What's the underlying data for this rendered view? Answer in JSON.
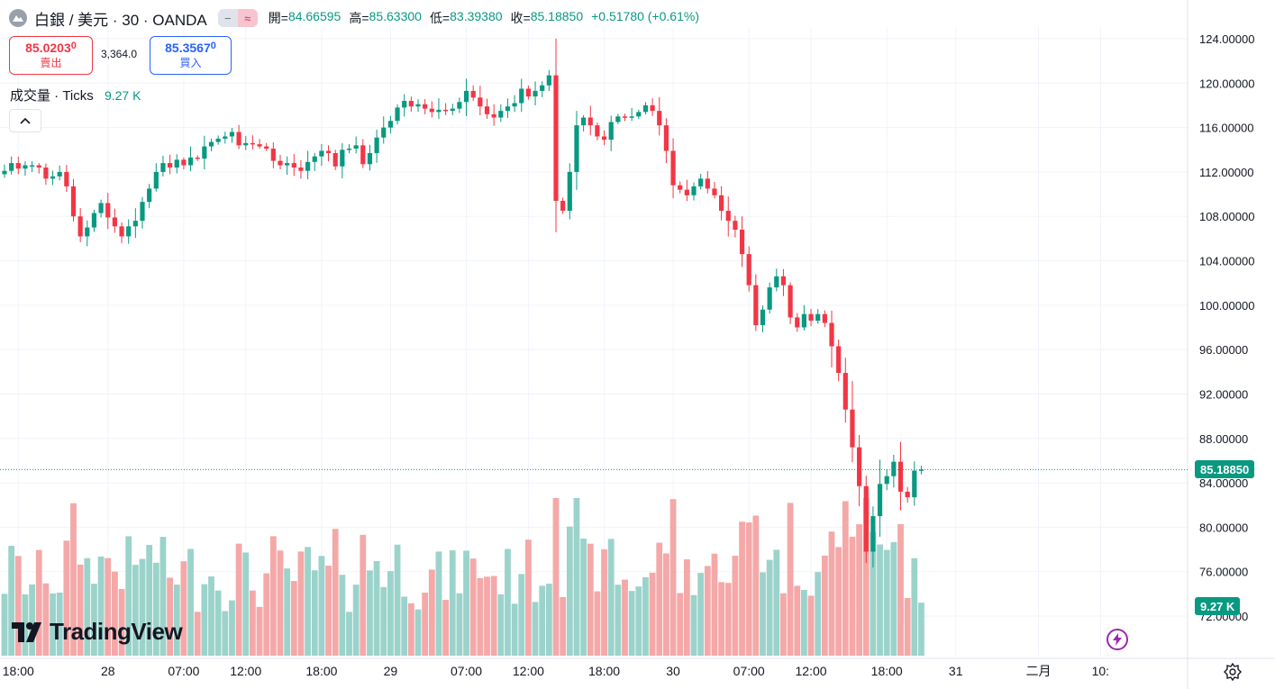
{
  "header": {
    "title": "白銀 / 美元 · 30 · OANDA",
    "pill_left": "−",
    "pill_right": "≈",
    "open_label": "開=",
    "open_value": "84.66595",
    "high_label": "高=",
    "high_value": "85.63300",
    "low_label": "低=",
    "low_value": "83.39380",
    "close_label": "收=",
    "close_value": "85.18850",
    "change": "+0.51780 (+0.61%)"
  },
  "trade": {
    "sell_price": "85.0203",
    "sell_price_small": "0",
    "sell_label": "賣出",
    "spread": "3,364.0",
    "buy_price": "85.3567",
    "buy_price_small": "0",
    "buy_label": "買入"
  },
  "volume_legend": {
    "label": "成交量 · Ticks",
    "value": "9.27 K"
  },
  "colors": {
    "up": "#089981",
    "down": "#f23645",
    "vol_up": "#9bd3cb",
    "vol_down": "#f4a8a8",
    "grid": "#f0f3fa",
    "axis_text": "#131722"
  },
  "tags": {
    "last_price": "85.18850",
    "last_volume": "9.27 K"
  },
  "branding": {
    "logo_text": "TradingView"
  },
  "chart_data": {
    "type": "candlestick",
    "title": "白銀 / 美元 · 30 · OANDA",
    "ylim": [
      70.0,
      125.0
    ],
    "y_ticks": [
      "124.00000",
      "120.00000",
      "116.00000",
      "112.00000",
      "108.00000",
      "104.00000",
      "100.00000",
      "96.00000",
      "92.00000",
      "88.00000",
      "84.00000",
      "80.00000",
      "76.00000",
      "72.00000"
    ],
    "x_ticks": [
      "18:00",
      "28",
      "07:00",
      "12:00",
      "18:00",
      "29",
      "07:00",
      "12:00",
      "18:00",
      "30",
      "07:00",
      "12:00",
      "18:00",
      "31",
      "二月",
      "10:"
    ],
    "x_tick_bar_index": [
      2,
      15,
      26,
      35,
      46,
      56,
      67,
      76,
      87,
      97,
      108,
      117,
      128,
      138,
      150,
      159
    ],
    "last_price": 85.1885,
    "closes": [
      112.1,
      112.8,
      112.3,
      112.6,
      112.6,
      112.4,
      111.4,
      111.6,
      112.0,
      110.7,
      108.0,
      106.2,
      107.0,
      108.3,
      109.2,
      107.9,
      107.1,
      106.2,
      107.1,
      107.6,
      109.3,
      110.5,
      112.0,
      112.8,
      112.4,
      113.1,
      112.6,
      113.3,
      113.2,
      114.3,
      114.7,
      115.0,
      115.2,
      115.6,
      114.4,
      114.6,
      114.5,
      114.3,
      114.1,
      113.0,
      112.6,
      112.8,
      112.4,
      112.1,
      112.9,
      113.4,
      113.9,
      113.7,
      112.5,
      114.0,
      114.1,
      114.4,
      112.7,
      113.7,
      115.1,
      116.0,
      116.6,
      117.8,
      118.4,
      117.9,
      118.1,
      117.7,
      117.4,
      117.6,
      117.5,
      117.7,
      118.3,
      119.3,
      118.7,
      117.9,
      117.2,
      116.9,
      117.5,
      117.9,
      118.2,
      119.5,
      118.8,
      119.3,
      119.8,
      120.7,
      109.4,
      108.5,
      112.0,
      116.2,
      116.9,
      116.2,
      115.2,
      114.9,
      116.5,
      117.0,
      116.9,
      117.0,
      117.4,
      118.0,
      117.5,
      116.2,
      113.9,
      110.8,
      110.4,
      109.9,
      110.7,
      111.4,
      110.5,
      109.9,
      108.5,
      107.6,
      106.8,
      104.6,
      101.8,
      98.2,
      99.6,
      101.6,
      102.6,
      101.8,
      98.9,
      98.0,
      99.2,
      98.6,
      99.2,
      98.4,
      96.3,
      93.9,
      90.6,
      87.2,
      83.7,
      77.8,
      81.0,
      83.9,
      84.6,
      85.9,
      83.2,
      82.7,
      85.1,
      85.2
    ]
  }
}
